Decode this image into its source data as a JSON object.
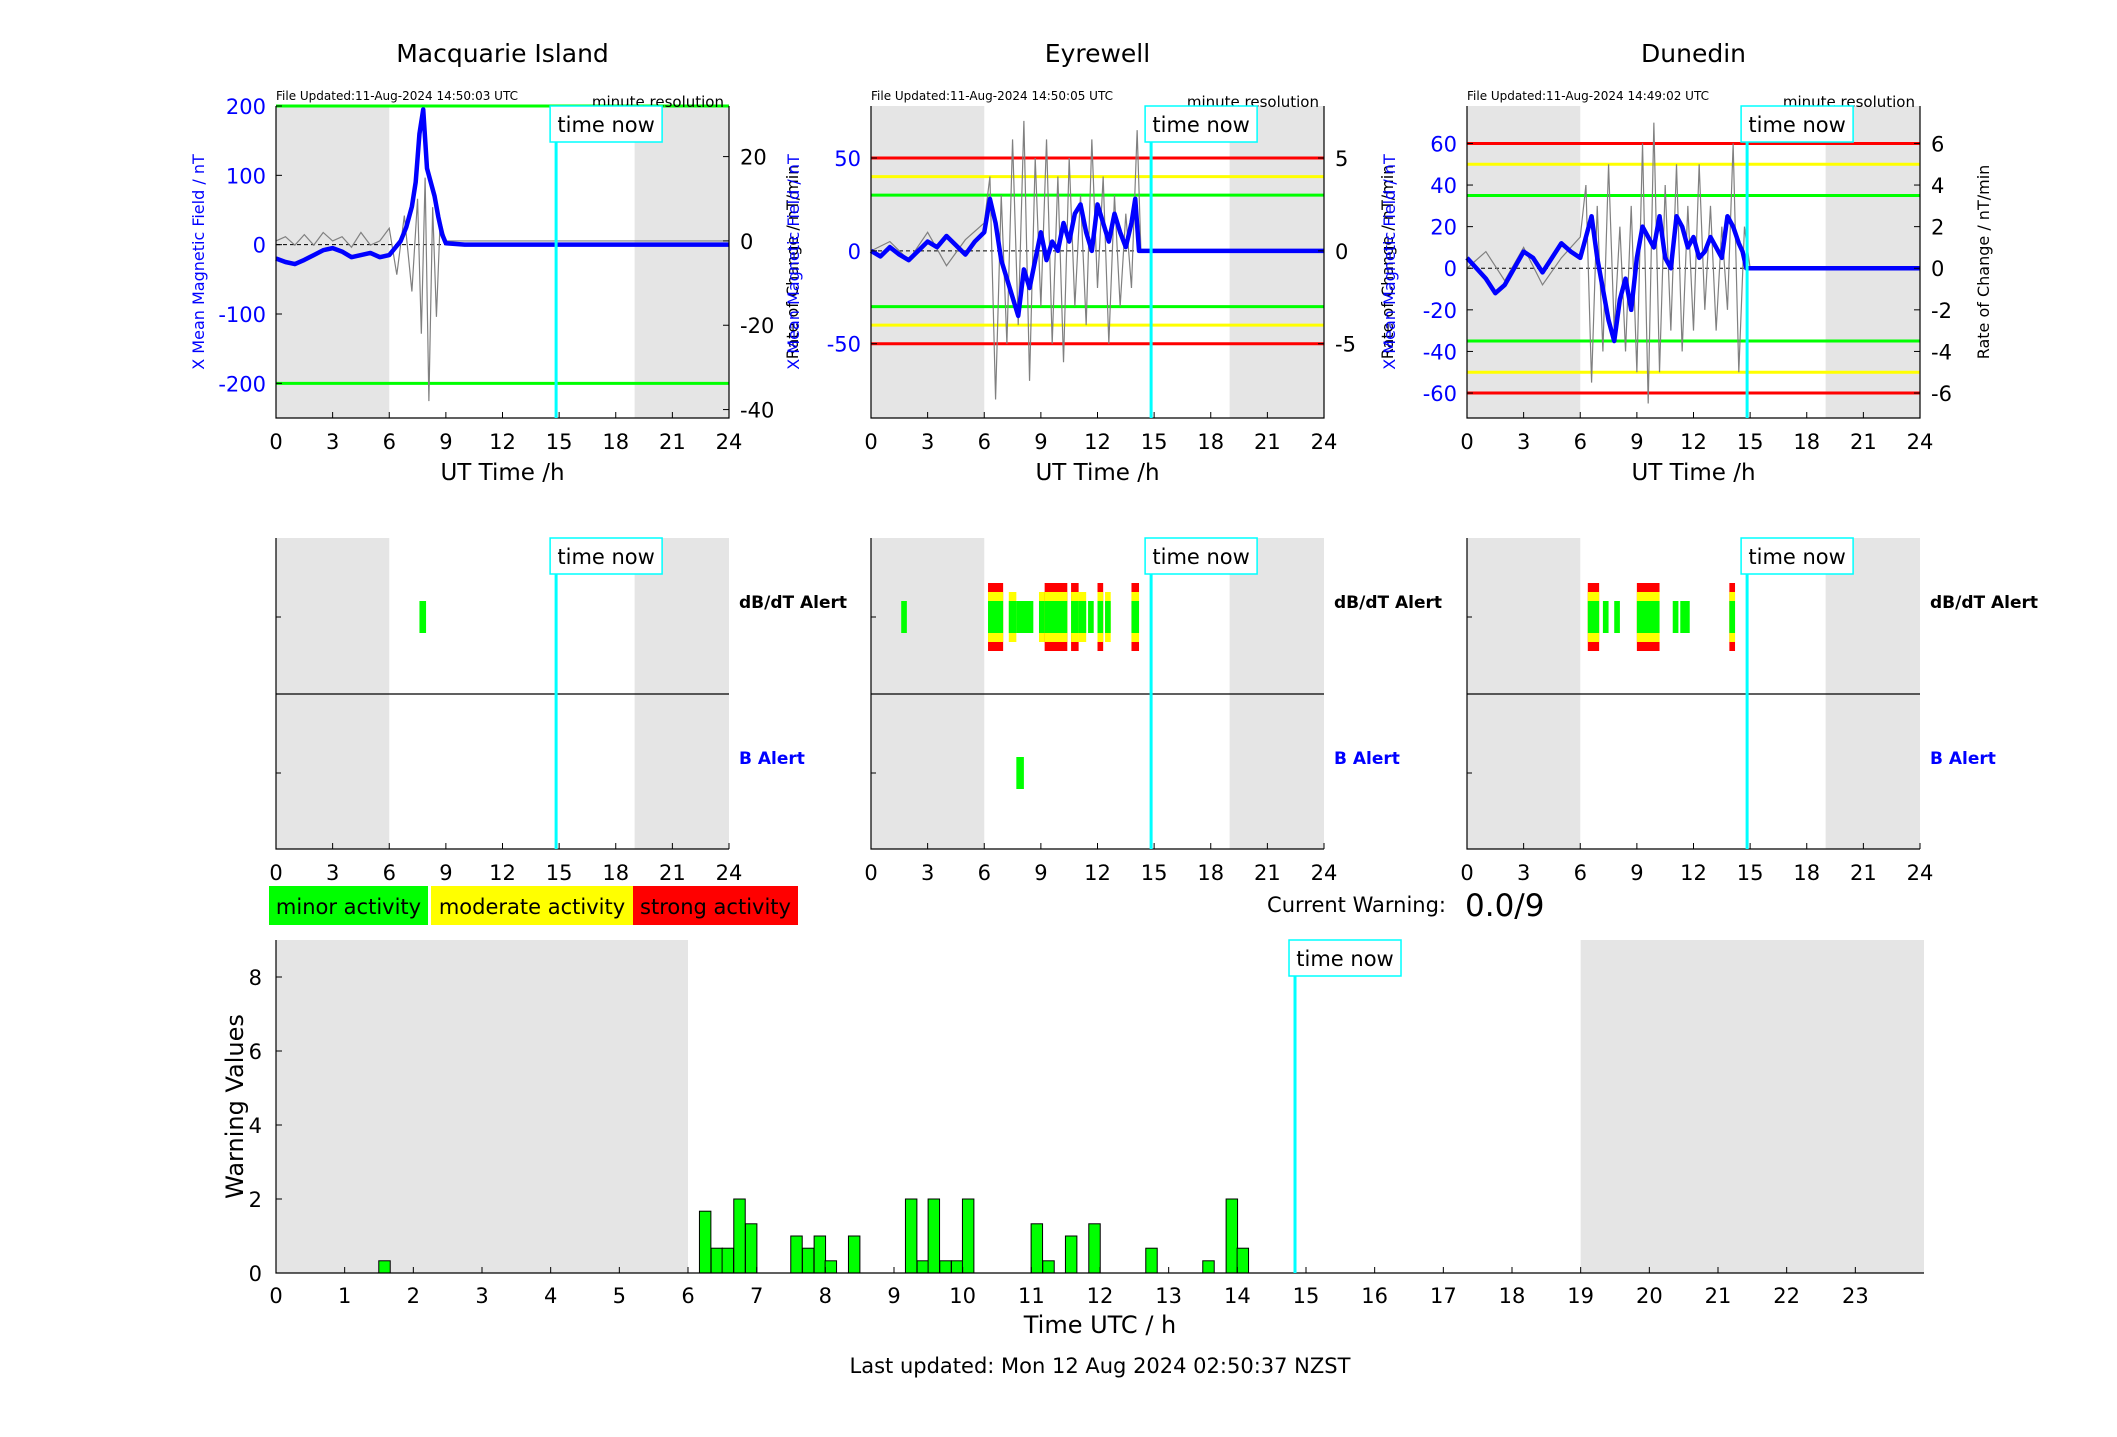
{
  "page": {
    "last_updated": "Last updated: Mon 12 Aug 2024 02:50:37 NZST",
    "time_now_label": "time now",
    "minute_resolution": "minute resolution",
    "current_warning_label": "Current Warning:",
    "current_warning_value": "0.0/9",
    "dbdt_alert_label": "dB/dT Alert",
    "b_alert_label": "B Alert",
    "time_now_hours": 14.84
  },
  "legend": {
    "minor": "minor activity",
    "moderate": "moderate activity",
    "strong": "strong activity"
  },
  "colors": {
    "minor": "#00ff00",
    "moderate": "#ffff00",
    "strong": "#ff0000",
    "field_trace": "#0000ff",
    "rate_trace": "#808080",
    "time_now": "#00ffff",
    "night_shade": "#e5e5e5"
  },
  "chart_data": [
    {
      "type": "line",
      "title": "Macquarie Island",
      "file_updated": "File Updated:11-Aug-2024 14:50:03 UTC",
      "xlabel": "UT Time /h",
      "ylabel": "X Mean Magnetic Field / nT",
      "y2label": "Rate of Change / nT/min",
      "xlim": [
        0,
        24
      ],
      "x_ticks": [
        0,
        3,
        6,
        9,
        12,
        15,
        18,
        21,
        24
      ],
      "ylim": [
        -250,
        200
      ],
      "y_ticks": [
        -200,
        -100,
        0,
        100,
        200
      ],
      "y2lim": [
        -42,
        32
      ],
      "y2_ticks": [
        -40,
        -20,
        0,
        20
      ],
      "night_periods": [
        [
          0,
          6
        ],
        [
          19,
          24
        ]
      ],
      "threshold_lines": [
        {
          "value": 200,
          "color": "#00ff00"
        },
        {
          "value": -200,
          "color": "#00ff00"
        }
      ],
      "field_series": {
        "x": [
          0,
          0.5,
          1,
          1.5,
          2,
          2.5,
          3,
          3.5,
          4,
          4.5,
          5,
          5.5,
          6,
          6.3,
          6.6,
          6.9,
          7.2,
          7.4,
          7.6,
          7.8,
          8.0,
          8.2,
          8.4,
          8.6,
          8.8,
          9.0,
          10,
          12,
          14,
          15,
          18,
          21,
          24
        ],
        "y": [
          -20,
          -25,
          -28,
          -22,
          -15,
          -8,
          -5,
          -10,
          -18,
          -15,
          -12,
          -18,
          -15,
          -5,
          5,
          25,
          55,
          90,
          160,
          195,
          110,
          90,
          70,
          40,
          15,
          2,
          0,
          0,
          0,
          0,
          0,
          0,
          0
        ]
      },
      "rate_series": {
        "x": [
          0,
          0.5,
          1,
          1.5,
          2,
          2.5,
          3,
          3.5,
          4,
          4.5,
          5,
          5.5,
          6,
          6.4,
          6.8,
          7.2,
          7.5,
          7.7,
          7.9,
          8.1,
          8.3,
          8.5,
          8.7,
          9.0,
          12,
          15,
          18,
          21,
          24
        ],
        "y": [
          0,
          1,
          -1,
          1.5,
          -1,
          2,
          0,
          1,
          -1.5,
          2,
          -1,
          0,
          3,
          -8,
          6,
          -12,
          10,
          -22,
          15,
          -38,
          8,
          -18,
          5,
          0,
          0,
          0,
          0,
          0,
          0
        ]
      },
      "alerts": {
        "dbdt": [
          {
            "start": 7.6,
            "end": 7.95,
            "level": "minor"
          }
        ],
        "b": []
      }
    },
    {
      "type": "line",
      "title": "Eyrewell",
      "file_updated": "File Updated:11-Aug-2024 14:50:05 UTC",
      "xlabel": "UT Time /h",
      "ylabel": "X Mean Magnetic Field / nT",
      "y2label": "Rate of Change / nT/min",
      "xlim": [
        0,
        24
      ],
      "x_ticks": [
        0,
        3,
        6,
        9,
        12,
        15,
        18,
        21,
        24
      ],
      "ylim": [
        -90,
        78
      ],
      "y_ticks": [
        -50,
        0,
        50
      ],
      "y2lim": [
        -9,
        7.8
      ],
      "y2_ticks": [
        -5,
        0,
        5
      ],
      "night_periods": [
        [
          0,
          6
        ],
        [
          19,
          24
        ]
      ],
      "threshold_lines": [
        {
          "value": 50,
          "color": "#ff0000"
        },
        {
          "value": 40,
          "color": "#ffff00"
        },
        {
          "value": 30,
          "color": "#00ff00"
        },
        {
          "value": -30,
          "color": "#00ff00"
        },
        {
          "value": -40,
          "color": "#ffff00"
        },
        {
          "value": -50,
          "color": "#ff0000"
        }
      ],
      "field_series": {
        "x": [
          0,
          0.5,
          1,
          1.5,
          2,
          2.5,
          3,
          3.5,
          4,
          4.5,
          5,
          5.5,
          6,
          6.3,
          6.6,
          6.9,
          7.2,
          7.5,
          7.8,
          8.1,
          8.4,
          8.7,
          9.0,
          9.3,
          9.6,
          9.9,
          10.2,
          10.5,
          10.8,
          11.1,
          11.4,
          11.7,
          12.0,
          12.3,
          12.6,
          12.9,
          13.2,
          13.5,
          13.8,
          14.0,
          14.2,
          14.4,
          15,
          18,
          21,
          24
        ],
        "y": [
          0,
          -3,
          2,
          -2,
          -5,
          0,
          5,
          2,
          8,
          3,
          -2,
          5,
          10,
          28,
          15,
          -5,
          -15,
          -25,
          -35,
          -10,
          -20,
          -5,
          10,
          -5,
          5,
          0,
          15,
          5,
          20,
          25,
          10,
          0,
          25,
          15,
          5,
          20,
          10,
          2,
          15,
          28,
          0,
          0,
          0,
          0,
          0,
          0
        ]
      },
      "rate_series": {
        "x": [
          0,
          1,
          2,
          3,
          4,
          5,
          6,
          6.3,
          6.6,
          6.9,
          7.2,
          7.5,
          7.8,
          8.1,
          8.4,
          8.7,
          9.0,
          9.3,
          9.6,
          9.9,
          10.2,
          10.5,
          10.8,
          11.1,
          11.4,
          11.7,
          12.0,
          12.3,
          12.6,
          12.9,
          13.2,
          13.5,
          13.8,
          14.1,
          14.3,
          15,
          18,
          21,
          24
        ],
        "y": [
          0,
          0.5,
          -0.5,
          1,
          -0.8,
          0.6,
          1.5,
          4,
          -8,
          3,
          -5,
          6,
          -4,
          7,
          -7,
          5,
          -3,
          6,
          -5,
          4,
          -6,
          5,
          -3,
          3,
          -4,
          6,
          -2,
          4,
          -5,
          3,
          -3,
          2,
          -2,
          6.5,
          0,
          0,
          0,
          0,
          0
        ]
      },
      "alerts": {
        "dbdt": [
          {
            "start": 1.6,
            "end": 1.9,
            "level": "minor"
          },
          {
            "start": 6.2,
            "end": 7.0,
            "level": "strong"
          },
          {
            "start": 7.3,
            "end": 7.7,
            "level": "moderate"
          },
          {
            "start": 7.7,
            "end": 8.6,
            "level": "minor"
          },
          {
            "start": 8.9,
            "end": 9.3,
            "level": "moderate"
          },
          {
            "start": 9.2,
            "end": 10.4,
            "level": "strong"
          },
          {
            "start": 10.6,
            "end": 11.0,
            "level": "strong"
          },
          {
            "start": 11.0,
            "end": 11.4,
            "level": "moderate"
          },
          {
            "start": 11.5,
            "end": 11.8,
            "level": "minor"
          },
          {
            "start": 12.0,
            "end": 12.3,
            "level": "strong"
          },
          {
            "start": 12.4,
            "end": 12.7,
            "level": "moderate"
          },
          {
            "start": 13.8,
            "end": 14.2,
            "level": "strong"
          }
        ],
        "b": [
          {
            "start": 7.7,
            "end": 8.1,
            "level": "minor"
          }
        ]
      }
    },
    {
      "type": "line",
      "title": "Dunedin",
      "file_updated": "File Updated:11-Aug-2024 14:49:02 UTC",
      "xlabel": "UT Time /h",
      "ylabel": "X Mean Magnetic Field / nT",
      "y2label": "Rate of Change / nT/min",
      "xlim": [
        0,
        24
      ],
      "x_ticks": [
        0,
        3,
        6,
        9,
        12,
        15,
        18,
        21,
        24
      ],
      "ylim": [
        -72,
        78
      ],
      "y_ticks": [
        -60,
        -40,
        -20,
        0,
        20,
        40,
        60
      ],
      "y2lim": [
        -7.2,
        7.8
      ],
      "y2_ticks": [
        -6,
        -4,
        -2,
        0,
        2,
        4,
        6
      ],
      "night_periods": [
        [
          0,
          6
        ],
        [
          19,
          24
        ]
      ],
      "threshold_lines": [
        {
          "value": 60,
          "color": "#ff0000"
        },
        {
          "value": 50,
          "color": "#ffff00"
        },
        {
          "value": 35,
          "color": "#00ff00"
        },
        {
          "value": -35,
          "color": "#00ff00"
        },
        {
          "value": -50,
          "color": "#ffff00"
        },
        {
          "value": -60,
          "color": "#ff0000"
        }
      ],
      "field_series": {
        "x": [
          0,
          0.5,
          1,
          1.5,
          2,
          2.5,
          3,
          3.5,
          4,
          4.5,
          5,
          5.5,
          6,
          6.3,
          6.6,
          6.9,
          7.2,
          7.5,
          7.8,
          8.1,
          8.4,
          8.7,
          9.0,
          9.3,
          9.6,
          9.9,
          10.2,
          10.5,
          10.8,
          11.1,
          11.4,
          11.7,
          12.0,
          12.3,
          12.6,
          12.9,
          13.2,
          13.5,
          13.8,
          14.1,
          14.4,
          14.6,
          14.8,
          15,
          18,
          21,
          24
        ],
        "y": [
          5,
          0,
          -5,
          -12,
          -8,
          0,
          8,
          5,
          -2,
          5,
          12,
          8,
          5,
          15,
          25,
          5,
          -10,
          -25,
          -35,
          -15,
          -5,
          -20,
          5,
          20,
          15,
          10,
          25,
          5,
          0,
          25,
          20,
          10,
          15,
          5,
          8,
          15,
          10,
          5,
          25,
          20,
          12,
          8,
          0,
          0,
          0,
          0,
          0
        ]
      },
      "rate_series": {
        "x": [
          0,
          1,
          2,
          3,
          4,
          5,
          6,
          6.3,
          6.6,
          6.9,
          7.2,
          7.5,
          7.8,
          8.1,
          8.4,
          8.7,
          9.0,
          9.3,
          9.6,
          9.9,
          10.2,
          10.5,
          10.8,
          11.1,
          11.4,
          11.7,
          12.0,
          12.3,
          12.6,
          12.9,
          13.2,
          13.5,
          13.8,
          14.1,
          14.4,
          14.7,
          15,
          18,
          21,
          24
        ],
        "y": [
          0,
          0.8,
          -0.6,
          1,
          -0.8,
          0.5,
          1.5,
          4,
          -5.5,
          3,
          -4,
          5,
          -3,
          2,
          -4,
          3,
          -5,
          6,
          -6.5,
          7,
          -5,
          4,
          -3,
          5,
          -4,
          3,
          -3,
          5,
          -2,
          3,
          -3,
          2,
          -2,
          6,
          -5,
          2,
          0,
          0,
          0,
          0
        ]
      },
      "alerts": {
        "dbdt": [
          {
            "start": 6.4,
            "end": 7.0,
            "level": "strong"
          },
          {
            "start": 7.2,
            "end": 7.5,
            "level": "minor"
          },
          {
            "start": 7.8,
            "end": 8.1,
            "level": "minor"
          },
          {
            "start": 9.0,
            "end": 10.2,
            "level": "strong"
          },
          {
            "start": 10.9,
            "end": 11.2,
            "level": "minor"
          },
          {
            "start": 11.3,
            "end": 11.8,
            "level": "minor"
          },
          {
            "start": 13.9,
            "end": 14.2,
            "level": "strong"
          }
        ],
        "b": []
      }
    },
    {
      "type": "bar",
      "title": "",
      "xlabel": "Time UTC / h",
      "ylabel": "Warning Values",
      "xlim": [
        0,
        24
      ],
      "x_ticks": [
        0,
        1,
        2,
        3,
        4,
        5,
        6,
        7,
        8,
        9,
        10,
        11,
        12,
        13,
        14,
        15,
        16,
        17,
        18,
        19,
        20,
        21,
        22,
        23
      ],
      "ylim": [
        0,
        9
      ],
      "y_ticks": [
        0,
        2,
        4,
        6,
        8
      ],
      "night_periods": [
        [
          0,
          6
        ],
        [
          19,
          24
        ]
      ],
      "bar_width_h": 0.1667,
      "x": [
        1.58,
        6.25,
        6.42,
        6.58,
        6.75,
        6.92,
        7.58,
        7.75,
        7.92,
        8.08,
        8.42,
        9.25,
        9.42,
        9.58,
        9.75,
        9.92,
        10.08,
        11.08,
        11.25,
        11.58,
        11.92,
        12.75,
        13.58,
        13.92,
        14.08
      ],
      "values": [
        0.33,
        1.67,
        0.67,
        0.67,
        2.0,
        1.33,
        1.0,
        0.67,
        1.0,
        0.33,
        1.0,
        2.0,
        0.33,
        2.0,
        0.33,
        0.33,
        2.0,
        1.33,
        0.33,
        1.0,
        1.33,
        0.67,
        0.33,
        2.0,
        0.67
      ]
    }
  ]
}
